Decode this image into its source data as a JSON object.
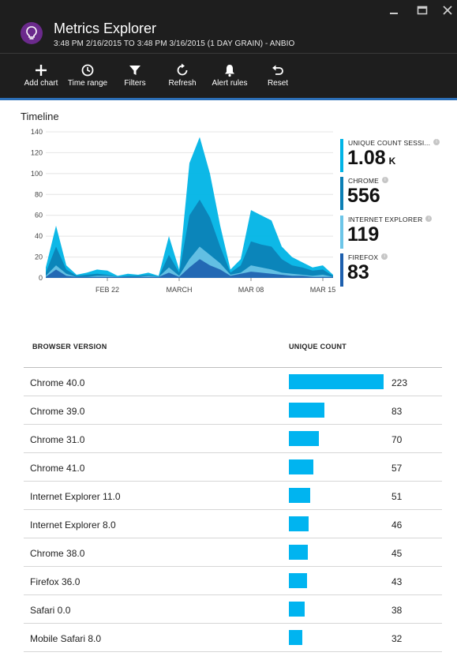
{
  "header": {
    "title": "Metrics Explorer",
    "subtitle": "3:48 PM 2/16/2015 TO 3:48 PM 3/16/2015 (1 DAY GRAIN) - ANBIO"
  },
  "toolbar": {
    "add_chart": "Add chart",
    "time_range": "Time range",
    "filters": "Filters",
    "refresh": "Refresh",
    "alert_rules": "Alert rules",
    "reset": "Reset"
  },
  "timeline": {
    "label": "Timeline",
    "metrics": [
      {
        "name": "UNIQUE COUNT SESSI...",
        "value": "1.08",
        "unit": "K",
        "color": "#00b4e6"
      },
      {
        "name": "CHROME",
        "value": "556",
        "unit": "",
        "color": "#0b7fb5"
      },
      {
        "name": "INTERNET EXPLORER",
        "value": "119",
        "unit": "",
        "color": "#6cc5e8"
      },
      {
        "name": "FIREFOX",
        "value": "83",
        "unit": "",
        "color": "#1d5fae"
      }
    ]
  },
  "chart_data": {
    "type": "area",
    "title": "",
    "ylim": [
      0,
      140
    ],
    "yticks": [
      0,
      20,
      40,
      60,
      80,
      100,
      120,
      140
    ],
    "x_ticks": [
      "FEB 22",
      "MARCH",
      "MAR 08",
      "MAR 15"
    ],
    "x": [
      "Feb 16",
      "Feb 17",
      "Feb 18",
      "Feb 19",
      "Feb 20",
      "Feb 21",
      "Feb 22",
      "Feb 23",
      "Feb 24",
      "Feb 25",
      "Feb 26",
      "Feb 27",
      "Feb 28",
      "Mar 01",
      "Mar 02",
      "Mar 03",
      "Mar 04",
      "Mar 05",
      "Mar 06",
      "Mar 07",
      "Mar 08",
      "Mar 09",
      "Mar 10",
      "Mar 11",
      "Mar 12",
      "Mar 13",
      "Mar 14",
      "Mar 15",
      "Mar 16"
    ],
    "series": [
      {
        "name": "UNIQUE COUNT SESSI...",
        "color": "#00b4e6",
        "values": [
          10,
          50,
          12,
          3,
          5,
          8,
          7,
          2,
          4,
          3,
          5,
          2,
          40,
          8,
          110,
          135,
          100,
          50,
          8,
          18,
          65,
          60,
          55,
          30,
          20,
          15,
          10,
          12,
          3
        ]
      },
      {
        "name": "CHROME",
        "color": "#0b7fb5",
        "values": [
          5,
          30,
          8,
          2,
          3,
          4,
          3,
          1,
          2,
          2,
          3,
          1,
          22,
          5,
          60,
          75,
          58,
          30,
          5,
          12,
          35,
          32,
          30,
          18,
          12,
          10,
          7,
          8,
          2
        ]
      },
      {
        "name": "INTERNET EXPLORER",
        "color": "#6cc5e8",
        "values": [
          2,
          12,
          4,
          1,
          1,
          2,
          2,
          1,
          1,
          1,
          2,
          1,
          10,
          2,
          18,
          30,
          22,
          14,
          3,
          5,
          12,
          10,
          8,
          5,
          4,
          3,
          2,
          3,
          1
        ]
      },
      {
        "name": "FIREFOX",
        "color": "#1d5fae",
        "values": [
          1,
          8,
          2,
          1,
          1,
          1,
          1,
          1,
          1,
          1,
          1,
          1,
          5,
          1,
          10,
          18,
          12,
          8,
          2,
          4,
          6,
          5,
          4,
          3,
          2,
          2,
          1,
          1,
          1
        ]
      }
    ]
  },
  "table": {
    "col_browser": "BROWSER VERSION",
    "col_count": "UNIQUE COUNT",
    "max": 223,
    "rows": [
      {
        "name": "Chrome 40.0",
        "count": 223
      },
      {
        "name": "Chrome 39.0",
        "count": 83
      },
      {
        "name": "Chrome 31.0",
        "count": 70
      },
      {
        "name": "Chrome 41.0",
        "count": 57
      },
      {
        "name": "Internet Explorer 11.0",
        "count": 51
      },
      {
        "name": "Internet Explorer 8.0",
        "count": 46
      },
      {
        "name": "Chrome 38.0",
        "count": 45
      },
      {
        "name": "Firefox 36.0",
        "count": 43
      },
      {
        "name": "Safari 0.0",
        "count": 38
      },
      {
        "name": "Mobile Safari 8.0",
        "count": 32
      }
    ]
  }
}
